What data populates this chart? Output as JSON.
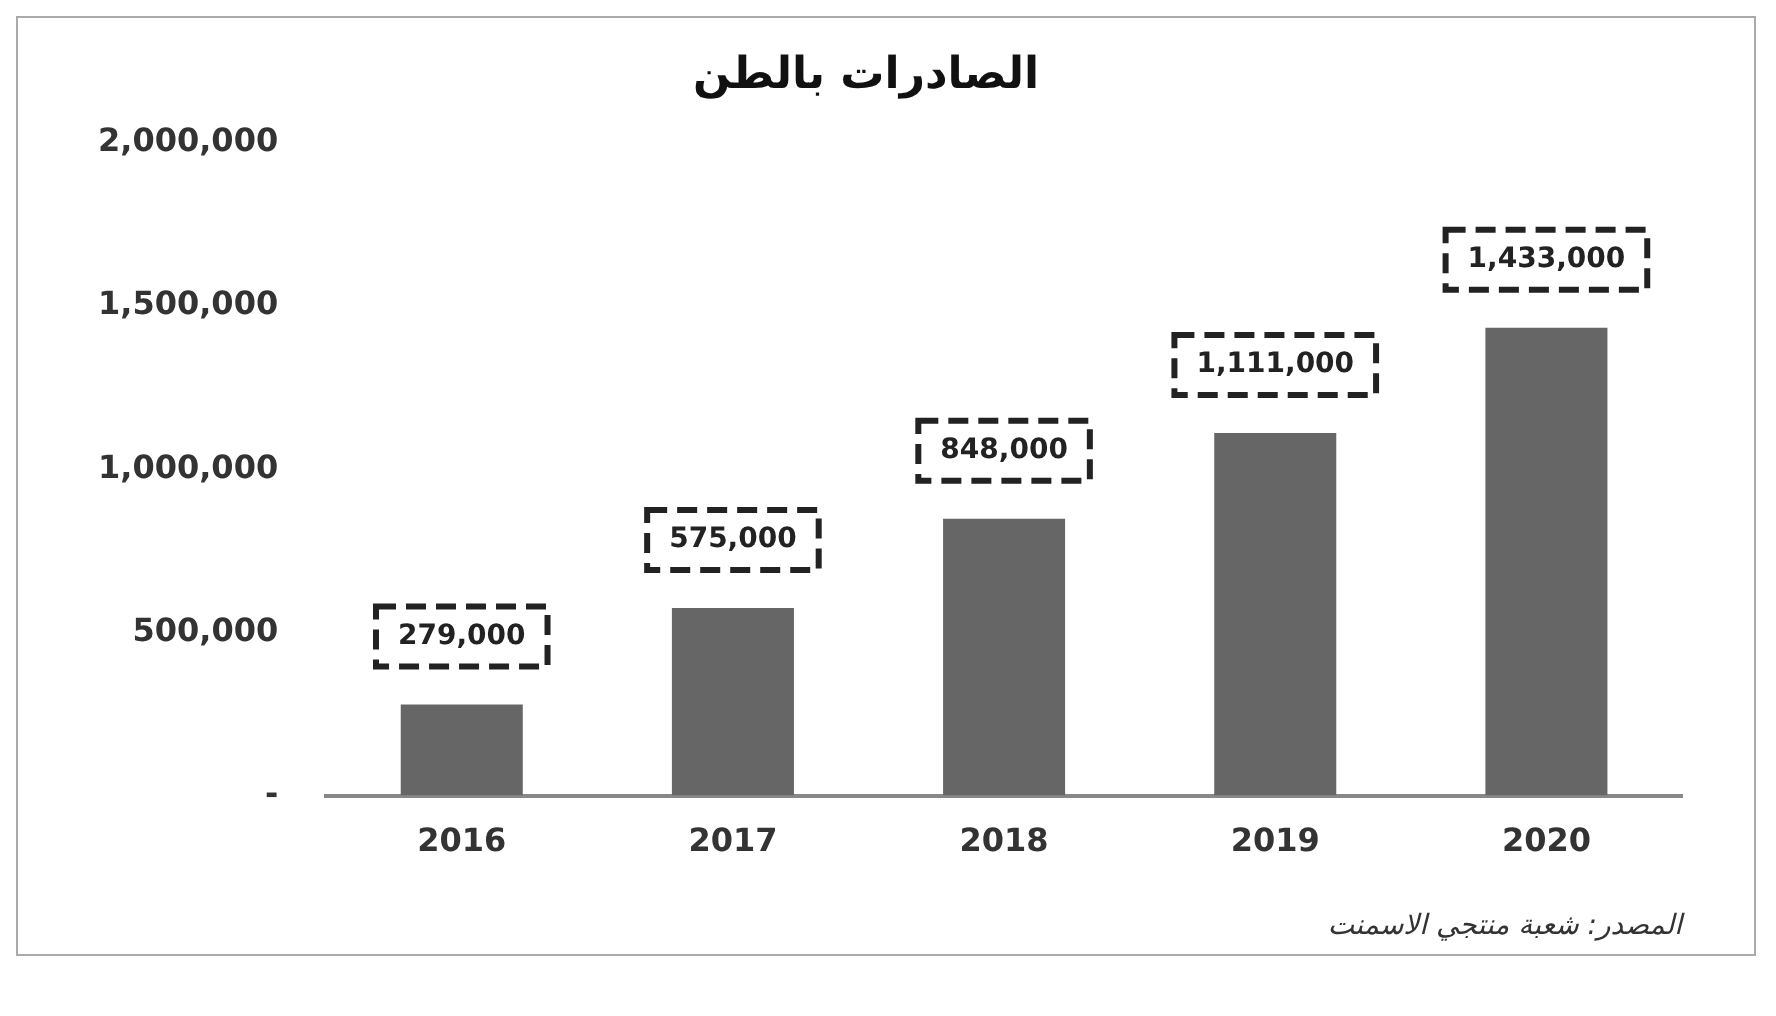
{
  "chart_data": {
    "type": "bar",
    "title": "الصادرات بالطن",
    "categories": [
      "2016",
      "2017",
      "2018",
      "2019",
      "2020"
    ],
    "values": [
      279000,
      575000,
      848000,
      1111000,
      1433000
    ],
    "value_labels": [
      "279,000",
      "575,000",
      "848,000",
      "1,111,000",
      "1,433,000"
    ],
    "color": "#666666",
    "ylim": [
      0,
      2000000
    ],
    "yticks": [
      {
        "value": 0,
        "label": "-"
      },
      {
        "value": 500000,
        "label": "500,000"
      },
      {
        "value": 1000000,
        "label": "1,000,000"
      },
      {
        "value": 1500000,
        "label": "1,500,000"
      },
      {
        "value": 2000000,
        "label": "2,000,000"
      }
    ],
    "grid": false,
    "annotations": [
      "المصدر: شعبة منتجي الاسمنت"
    ]
  }
}
